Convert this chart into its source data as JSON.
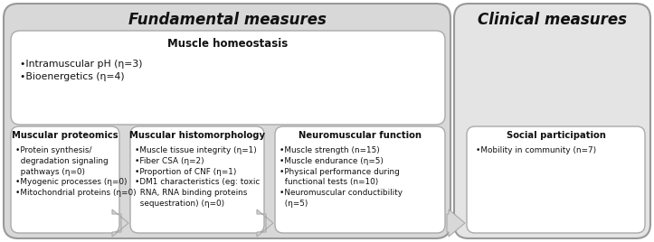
{
  "title_fundamental": "Fundamental measures",
  "title_clinical": "Clinical measures",
  "muscle_homeostasis_title": "Muscle homeostasis",
  "muscle_homeostasis_items": "•Intramuscular pH (η=3)\n•Bioenergetics (η=4)",
  "box1_title": "Muscular proteomics",
  "box1_items": "•Protein synthesis/\n  degradation signaling\n  pathways (η=0)\n•Myogenic processes (η=0)\n•Mitochondrial proteins (η=0)",
  "box2_title": "Muscular histomorphology",
  "box2_items": "•Muscle tissue integrity (η=1)\n•Fiber CSA (η=2)\n•Proportion of CNF (η=1)\n•DM1 characteristics (eg: toxic\n  RNA, RNA binding proteins\n  sequestration) (η=0)",
  "box3_title": "Neuromuscular function",
  "box3_items": "•Muscle strength (n=15)\n•Muscle endurance (η=5)\n•Physical performance during\n  functional tests (n=10)\n•Neuromuscular conductibility\n  (η=5)",
  "box4_title": "Social participation",
  "box4_items": "•Mobility in community (n=7)",
  "bg_fundamental": "#d8d8d8",
  "bg_clinical": "#e4e4e4",
  "bg_white": "#ffffff",
  "border_outer": "#999999",
  "border_inner": "#aaaaaa",
  "text_color": "#111111",
  "arrow_facecolor": "#d8d8d8",
  "arrow_edgecolor": "#aaaaaa"
}
